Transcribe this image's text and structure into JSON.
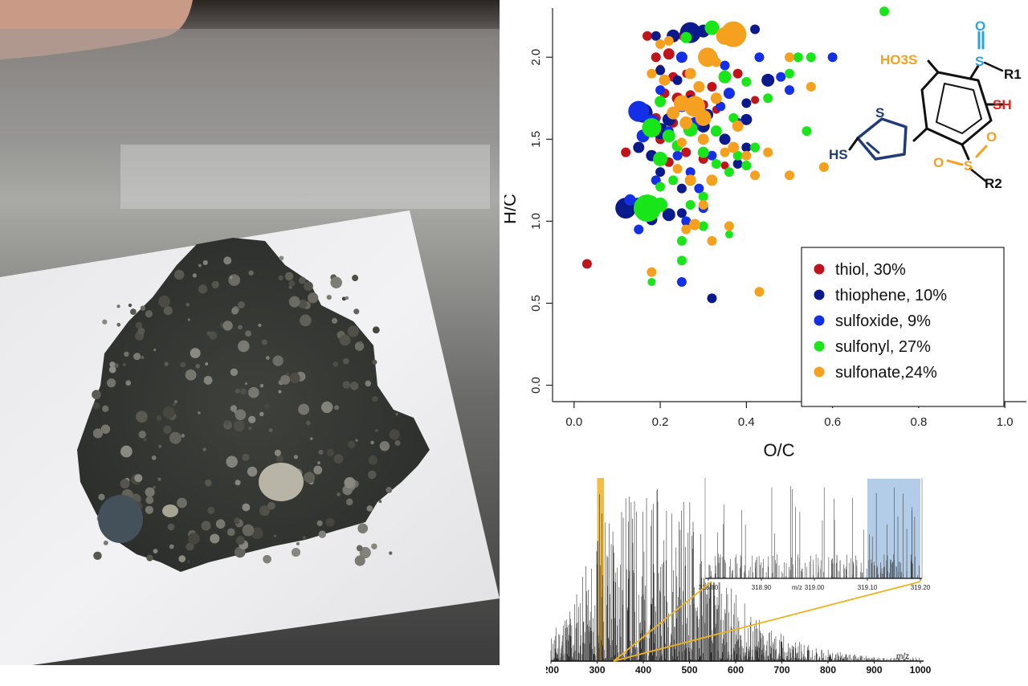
{
  "colors": {
    "thiol": "#c0141c",
    "thiophene": "#0a1a8c",
    "sulfoxide": "#1430e6",
    "sulfonyl": "#19e619",
    "sulfonate": "#f5a01e",
    "highlight_gold": "#f0b21e",
    "highlight_blue": "#b3cde8",
    "structure_thiophene": "#1f3c78",
    "structure_sulfoxide": "#2aa3e0",
    "structure_thiol": "#e3201b"
  },
  "photo": {
    "subject": "meteorite slice",
    "description": "dark chondritic meteorite fragment on white plate"
  },
  "structure": {
    "labels": {
      "so3h": "HO3S",
      "o_top": "O",
      "s_top": "S",
      "r1": "R1",
      "sh_right": "SH",
      "s_ring": "S",
      "hs_left": "HS",
      "s_sulfonyl": "S",
      "o_left": "O",
      "o_right": "O",
      "r2": "R2"
    }
  },
  "chart_data": [
    {
      "type": "scatter",
      "title": "",
      "xlabel": "O/C",
      "ylabel": "H/C",
      "xlim": [
        -0.05,
        1.05
      ],
      "ylim": [
        -0.1,
        2.3
      ],
      "xticks": [
        "0.0",
        "0.2",
        "0.4",
        "0.6",
        "0.8",
        "1.0"
      ],
      "yticks": [
        "0.0",
        "0.5",
        "1.0",
        "1.5",
        "2.0"
      ],
      "grid": false,
      "legend_position": "bottom-right",
      "series": [
        {
          "name": "thiol, 30%",
          "key": "thiol",
          "points": [
            [
              0.03,
              0.74,
              6
            ],
            [
              0.17,
              2.13,
              6
            ],
            [
              0.19,
              2.0,
              6
            ],
            [
              0.22,
              2.02,
              7
            ],
            [
              0.2,
              1.93,
              5
            ],
            [
              0.23,
              1.88,
              6
            ],
            [
              0.26,
              1.9,
              5
            ],
            [
              0.21,
              1.78,
              6
            ],
            [
              0.24,
              1.75,
              7
            ],
            [
              0.27,
              1.77,
              6
            ],
            [
              0.3,
              1.71,
              6
            ],
            [
              0.33,
              1.68,
              5
            ],
            [
              0.19,
              1.63,
              6
            ],
            [
              0.23,
              1.6,
              6
            ],
            [
              0.28,
              1.58,
              6
            ],
            [
              0.2,
              1.5,
              6
            ],
            [
              0.24,
              1.45,
              5
            ],
            [
              0.12,
              1.42,
              6
            ],
            [
              0.26,
              1.42,
              6
            ],
            [
              0.22,
              1.36,
              6
            ],
            [
              0.3,
              1.38,
              6
            ],
            [
              0.35,
              1.34,
              5
            ],
            [
              0.2,
              1.3,
              5
            ],
            [
              0.17,
              1.62,
              6
            ],
            [
              0.38,
              1.9,
              6
            ],
            [
              0.42,
              1.74,
              5
            ],
            [
              0.32,
              1.82,
              6
            ],
            [
              0.25,
              2.13,
              5
            ]
          ]
        },
        {
          "name": "thiophene, 10%",
          "key": "thiophene",
          "points": [
            [
              0.27,
              2.15,
              13
            ],
            [
              0.23,
              2.13,
              8
            ],
            [
              0.3,
              2.16,
              8
            ],
            [
              0.42,
              2.17,
              6
            ],
            [
              0.19,
              2.13,
              6
            ],
            [
              0.2,
              1.92,
              6
            ],
            [
              0.16,
              1.66,
              12
            ],
            [
              0.2,
              1.55,
              10
            ],
            [
              0.15,
              1.45,
              7
            ],
            [
              0.18,
              1.4,
              7
            ],
            [
              0.22,
              1.62,
              8
            ],
            [
              0.3,
              1.58,
              8
            ],
            [
              0.4,
              1.62,
              7
            ],
            [
              0.35,
              1.5,
              7
            ],
            [
              0.4,
              1.45,
              6
            ],
            [
              0.2,
              1.3,
              6
            ],
            [
              0.25,
              1.2,
              6
            ],
            [
              0.15,
              1.1,
              9
            ],
            [
              0.12,
              1.08,
              13
            ],
            [
              0.22,
              1.04,
              8
            ],
            [
              0.18,
              1.01,
              7
            ],
            [
              0.25,
              1.05,
              6
            ],
            [
              0.32,
              0.53,
              6
            ],
            [
              0.38,
              1.35,
              6
            ],
            [
              0.45,
              1.86,
              8
            ],
            [
              0.4,
              1.72,
              6
            ],
            [
              0.31,
              1.65,
              7
            ],
            [
              0.27,
              1.74,
              6
            ],
            [
              0.24,
              1.86,
              6
            ]
          ]
        },
        {
          "name": "sulfoxide, 9%",
          "key": "sulfoxide",
          "points": [
            [
              0.15,
              1.67,
              13
            ],
            [
              0.18,
              1.6,
              10
            ],
            [
              0.16,
              1.52,
              8
            ],
            [
              0.25,
              1.7,
              7
            ],
            [
              0.28,
              1.6,
              7
            ],
            [
              0.22,
              1.55,
              6
            ],
            [
              0.3,
              1.5,
              6
            ],
            [
              0.25,
              2.0,
              7
            ],
            [
              0.32,
              2.0,
              7
            ],
            [
              0.35,
              1.95,
              6
            ],
            [
              0.6,
              2.0,
              6
            ],
            [
              0.5,
              1.8,
              6
            ],
            [
              0.48,
              1.88,
              6
            ],
            [
              0.43,
              2.0,
              6
            ],
            [
              0.2,
              1.8,
              6
            ],
            [
              0.24,
              1.4,
              6
            ],
            [
              0.2,
              1.1,
              7
            ],
            [
              0.26,
              1.0,
              6
            ],
            [
              0.3,
              1.08,
              6
            ],
            [
              0.15,
              0.95,
              6
            ],
            [
              0.25,
              0.63,
              6
            ],
            [
              0.13,
              1.13,
              7
            ],
            [
              0.36,
              1.78,
              7
            ],
            [
              0.38,
              1.6,
              6
            ],
            [
              0.32,
              1.4,
              6
            ],
            [
              0.27,
              1.3,
              6
            ],
            [
              0.19,
              1.25,
              6
            ],
            [
              0.29,
              1.2,
              6
            ],
            [
              0.34,
              1.7,
              6
            ]
          ]
        },
        {
          "name": "sulfonyl, 27%",
          "key": "sulfonyl",
          "points": [
            [
              0.17,
              1.08,
              17
            ],
            [
              0.2,
              1.1,
              9
            ],
            [
              0.18,
              1.57,
              12
            ],
            [
              0.22,
              1.52,
              8
            ],
            [
              0.2,
              1.38,
              9
            ],
            [
              0.24,
              1.46,
              7
            ],
            [
              0.27,
              1.56,
              9
            ],
            [
              0.33,
              1.55,
              7
            ],
            [
              0.3,
              1.42,
              7
            ],
            [
              0.38,
              1.4,
              6
            ],
            [
              0.42,
              1.45,
              6
            ],
            [
              0.36,
              1.3,
              6
            ],
            [
              0.35,
              1.88,
              8
            ],
            [
              0.4,
              1.85,
              6
            ],
            [
              0.45,
              1.75,
              6
            ],
            [
              0.5,
              1.9,
              6
            ],
            [
              0.52,
              2.0,
              6
            ],
            [
              0.55,
              2.0,
              6
            ],
            [
              0.54,
              1.55,
              6
            ],
            [
              0.32,
              2.18,
              9
            ],
            [
              0.26,
              2.12,
              7
            ],
            [
              0.2,
              1.73,
              7
            ],
            [
              0.23,
              1.25,
              6
            ],
            [
              0.2,
              1.21,
              6
            ],
            [
              0.3,
              1.15,
              6
            ],
            [
              0.3,
              0.97,
              6
            ],
            [
              0.25,
              0.88,
              6
            ],
            [
              0.25,
              0.76,
              6
            ],
            [
              0.18,
              0.63,
              5
            ],
            [
              0.72,
              2.28,
              6
            ],
            [
              0.36,
              0.92,
              5
            ],
            [
              0.4,
              1.34,
              6
            ],
            [
              0.33,
              1.35,
              6
            ],
            [
              0.27,
              1.1,
              6
            ],
            [
              0.37,
              1.63,
              6
            ]
          ]
        },
        {
          "name": "sulfonate,24%",
          "key": "sulfonate",
          "points": [
            [
              0.37,
              2.14,
              16
            ],
            [
              0.35,
              2.13,
              11
            ],
            [
              0.31,
              2.0,
              12
            ],
            [
              0.28,
              1.7,
              13
            ],
            [
              0.25,
              1.72,
              10
            ],
            [
              0.3,
              1.63,
              10
            ],
            [
              0.23,
              1.66,
              8
            ],
            [
              0.26,
              1.6,
              8
            ],
            [
              0.27,
              1.9,
              7
            ],
            [
              0.21,
              1.86,
              7
            ],
            [
              0.18,
              1.9,
              6
            ],
            [
              0.33,
              1.75,
              7
            ],
            [
              0.29,
              1.82,
              7
            ],
            [
              0.38,
              1.58,
              7
            ],
            [
              0.37,
              1.45,
              7
            ],
            [
              0.35,
              1.42,
              6
            ],
            [
              0.3,
              1.5,
              7
            ],
            [
              0.25,
              1.48,
              6
            ],
            [
              0.4,
              1.4,
              6
            ],
            [
              0.42,
              1.28,
              6
            ],
            [
              0.45,
              1.42,
              6
            ],
            [
              0.5,
              1.28,
              6
            ],
            [
              0.58,
              1.33,
              6
            ],
            [
              0.55,
              1.82,
              6
            ],
            [
              0.5,
              2.0,
              6
            ],
            [
              0.27,
              1.25,
              7
            ],
            [
              0.32,
              1.25,
              7
            ],
            [
              0.3,
              1.1,
              6
            ],
            [
              0.28,
              0.98,
              7
            ],
            [
              0.26,
              0.95,
              6
            ],
            [
              0.32,
              0.88,
              6
            ],
            [
              0.36,
              0.97,
              6
            ],
            [
              0.43,
              0.57,
              6
            ],
            [
              0.18,
              0.69,
              6
            ],
            [
              0.2,
              2.08,
              6
            ],
            [
              0.22,
              2.1,
              6
            ],
            [
              0.24,
              1.32,
              6
            ],
            [
              0.33,
              1.97,
              6
            ]
          ]
        }
      ]
    },
    {
      "type": "line",
      "title": "",
      "xlabel": "m/z",
      "ylabel": "",
      "xlim": [
        200,
        1000
      ],
      "xticks": [
        "200",
        "300",
        "400",
        "500",
        "600",
        "700",
        "800",
        "900",
        "1000"
      ],
      "gold_highlight_range": [
        300,
        315
      ],
      "inset": {
        "xlabel": "m/z",
        "xlim": [
          318.8,
          319.2
        ],
        "xticks": [
          "318.80",
          "318.90",
          "319.00",
          "319.10",
          "319.20"
        ],
        "blue_highlight_range": [
          319.1,
          319.2
        ]
      }
    }
  ]
}
